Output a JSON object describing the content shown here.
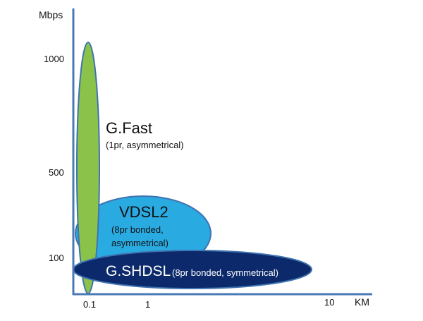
{
  "axes": {
    "y_label": "Mbps",
    "x_label": "KM",
    "y_ticks": [
      "1000",
      "500",
      "100"
    ],
    "x_ticks": [
      "0.1",
      "1",
      "10"
    ],
    "color": "#4a7ab5"
  },
  "technologies": {
    "gfast": {
      "name": "G.Fast",
      "desc": "(1pr, asymmetrical)",
      "fill": "#8bc34a",
      "stroke": "#3f73b0"
    },
    "vdsl2": {
      "name": "VDSL2",
      "desc_line1": "(8pr bonded,",
      "desc_line2": "asymmetrical)",
      "fill": "#29abe2",
      "stroke": "#3f73b0"
    },
    "gshdsl": {
      "name": "G.SHDSL",
      "desc": "(8pr bonded, symmetrical)",
      "fill": "#0c2a6b",
      "stroke": "#3f73b0"
    }
  }
}
